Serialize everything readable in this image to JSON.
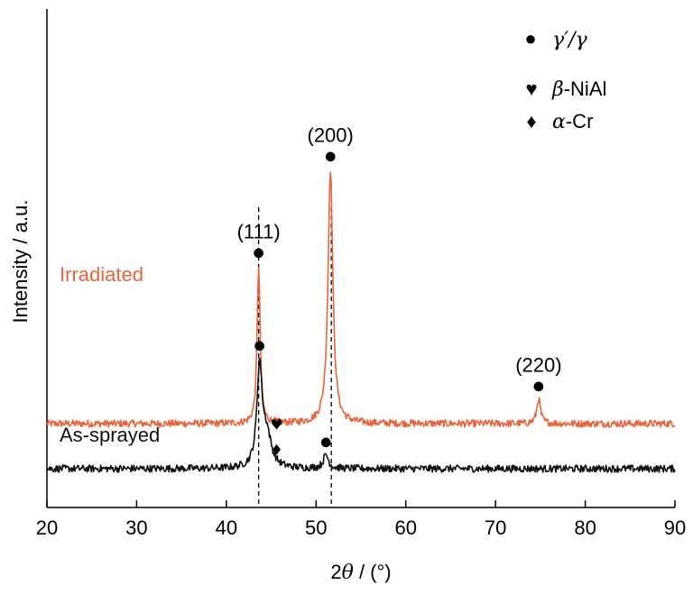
{
  "chart_data": {
    "type": "line",
    "title": "",
    "xlabel_parts": [
      "2",
      "θ",
      " / (°)"
    ],
    "ylabel": "Intensity / a.u.",
    "xlim": [
      20,
      90
    ],
    "xticks": [
      20,
      30,
      40,
      50,
      60,
      70,
      80,
      90
    ],
    "grid": false,
    "colors": {
      "irradiated": "#e8643c",
      "as_sprayed": "#111111",
      "axis": "#000000"
    },
    "series": [
      {
        "name": "Irradiated",
        "color": "#e8643c",
        "baseline": 1.0,
        "peaks": [
          {
            "x": 43.6,
            "height": 3.5,
            "width": 0.2
          },
          {
            "x": 51.6,
            "height": 5.65,
            "width": 0.32
          },
          {
            "x": 74.8,
            "height": 0.55,
            "width": 0.25
          }
        ]
      },
      {
        "name": "As-sprayed",
        "color": "#111111",
        "baseline": 0.0,
        "peaks": [
          {
            "x": 43.7,
            "height": 2.2,
            "width": 0.35
          },
          {
            "x": 44.5,
            "height": 0.7,
            "width": 0.6
          },
          {
            "x": 51.1,
            "height": 0.3,
            "width": 0.35
          }
        ]
      }
    ],
    "peak_labels": [
      {
        "text": "(111)",
        "x": 43.6
      },
      {
        "text": "(200)",
        "x": 51.6
      },
      {
        "text": "(220)",
        "x": 74.8
      }
    ],
    "phase_markers": [
      {
        "symbol": "●",
        "x": 43.6,
        "series": "Irradiated"
      },
      {
        "symbol": "●",
        "x": 51.6,
        "series": "Irradiated"
      },
      {
        "symbol": "●",
        "x": 74.8,
        "series": "Irradiated"
      },
      {
        "symbol": "●",
        "x": 43.7,
        "series": "As-sprayed"
      },
      {
        "symbol": "♥",
        "x": 44.7,
        "series": "As-sprayed"
      },
      {
        "symbol": "♦",
        "x": 44.7,
        "series": "As-sprayed"
      },
      {
        "symbol": "●",
        "x": 51.1,
        "series": "As-sprayed"
      }
    ],
    "reference_lines_x": [
      43.6,
      51.7
    ],
    "legend": {
      "placement": "top-right",
      "entries": [
        {
          "symbol": "●",
          "label_parts": [
            "γ′/γ",
            ""
          ]
        },
        {
          "symbol": "♥",
          "label_parts": [
            "β",
            "-NiAl"
          ]
        },
        {
          "symbol": "♦",
          "label_parts": [
            "α",
            "-Cr"
          ]
        }
      ]
    }
  }
}
